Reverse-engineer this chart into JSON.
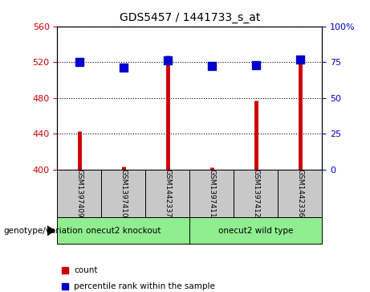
{
  "title": "GDS5457 / 1441733_s_at",
  "samples": [
    "GSM1397409",
    "GSM1397410",
    "GSM1442337",
    "GSM1397411",
    "GSM1397412",
    "GSM1442336"
  ],
  "counts": [
    443,
    403,
    527,
    402,
    477,
    520
  ],
  "percentile_ranks": [
    75,
    71,
    76,
    72,
    73,
    77
  ],
  "ylim_left": [
    400,
    560
  ],
  "ylim_right": [
    0,
    100
  ],
  "yticks_left": [
    400,
    440,
    480,
    520,
    560
  ],
  "yticks_right": [
    0,
    25,
    50,
    75,
    100
  ],
  "group_ranges": [
    [
      0,
      2,
      "onecut2 knockout"
    ],
    [
      3,
      5,
      "onecut2 wild type"
    ]
  ],
  "group_label_prefix": "genotype/variation",
  "bar_color": "#CC0000",
  "dot_color": "#0000CC",
  "left_tick_color": "#CC0000",
  "right_tick_color": "#0000CC",
  "sample_box_color": "#C8C8C8",
  "group_box_color": "#90EE90",
  "bar_linewidth": 3.5,
  "dot_size": 45,
  "base_value": 400,
  "legend_items": [
    {
      "label": "count",
      "color": "#CC0000"
    },
    {
      "label": "percentile rank within the sample",
      "color": "#0000CC"
    }
  ]
}
